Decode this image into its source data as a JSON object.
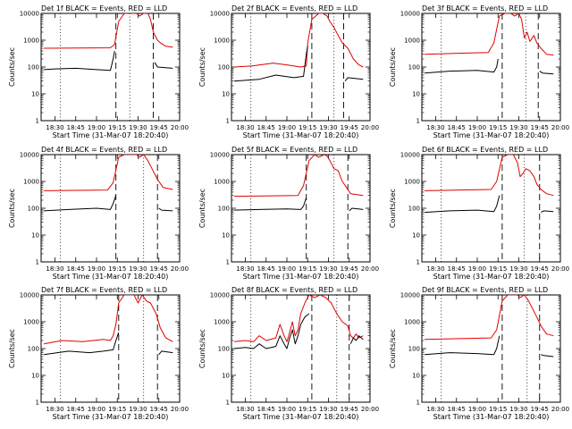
{
  "colors": {
    "events": "#000000",
    "lld": "#e00000",
    "axis": "#000000",
    "background": "#ffffff"
  },
  "chart_data": [
    {
      "type": "line",
      "title": "Det 1f BLACK = Events, RED = LLD",
      "xlabel": "Start Time (31-Mar-07 18:20:40)",
      "ylabel": "Counts/sec",
      "yscale": "log",
      "ylim": [
        1,
        10000
      ],
      "xlim": [
        "18:20",
        "20:00"
      ],
      "yticks": [
        "1",
        "10",
        "100",
        "1000",
        "10000"
      ],
      "xticks": [
        "18:30",
        "18:45",
        "19:00",
        "19:15",
        "19:30",
        "19:45",
        "20:00"
      ],
      "dotted_lines": [
        "18:34",
        "19:24"
      ],
      "dashed_lines": [
        "19:14",
        "19:41"
      ],
      "series": [
        {
          "color": "#e00000",
          "x": [
            "18:22",
            "19:10",
            "19:13",
            "19:16",
            "19:20",
            "19:29",
            "19:31",
            "19:34",
            "19:37",
            "19:39",
            "19:41",
            "19:44",
            "19:46",
            "19:50",
            "19:55"
          ],
          "y": [
            500,
            520,
            700,
            5000,
            10000,
            10000,
            8000,
            10000,
            10000,
            6000,
            2000,
            1000,
            800,
            600,
            550
          ]
        },
        {
          "color": "#000000",
          "x": [
            "18:22",
            "18:30",
            "18:45",
            "19:00",
            "19:10",
            "19:12",
            "19:13",
            "19:41",
            "19:42",
            "19:44",
            "19:55"
          ],
          "y": [
            80,
            85,
            90,
            80,
            75,
            200,
            400,
            null,
            150,
            100,
            90
          ]
        }
      ]
    },
    {
      "type": "line",
      "title": "Det 2f BLACK = Events, RED = LLD",
      "xlabel": "Start Time (31-Mar-07 18:20:40)",
      "ylabel": "Counts/sec",
      "yscale": "log",
      "ylim": [
        1,
        10000
      ],
      "xlim": [
        "18:20",
        "20:00"
      ],
      "yticks": [
        "1",
        "10",
        "100",
        "1000",
        "10000"
      ],
      "xticks": [
        "18:30",
        "18:45",
        "19:00",
        "19:15",
        "19:30",
        "19:45",
        "20:00"
      ],
      "dotted_lines": [
        "18:34",
        "19:34"
      ],
      "dashed_lines": [
        "19:18",
        "19:41"
      ],
      "series": [
        {
          "color": "#e00000",
          "x": [
            "18:22",
            "18:35",
            "18:50",
            "19:00",
            "19:10",
            "19:14",
            "19:15",
            "19:18",
            "19:23",
            "19:26",
            "19:29",
            "19:31",
            "19:34",
            "19:37",
            "19:40",
            "19:44",
            "19:48",
            "19:52",
            "19:55"
          ],
          "y": [
            100,
            110,
            140,
            120,
            100,
            110,
            800,
            6000,
            10000,
            10000,
            8000,
            5000,
            3000,
            1500,
            800,
            500,
            200,
            120,
            100
          ]
        },
        {
          "color": "#000000",
          "x": [
            "18:22",
            "18:40",
            "18:52",
            "19:05",
            "19:12",
            "19:14",
            "19:15",
            "19:41",
            "19:42",
            "19:44",
            "19:55"
          ],
          "y": [
            30,
            35,
            50,
            40,
            45,
            300,
            600,
            null,
            30,
            40,
            35
          ]
        }
      ]
    },
    {
      "type": "line",
      "title": "Det 3f BLACK = Events, RED = LLD",
      "xlabel": "Start Time (31-Mar-07 18:20:40)",
      "ylabel": "Counts/sec",
      "yscale": "log",
      "ylim": [
        1,
        10000
      ],
      "xlim": [
        "18:20",
        "20:00"
      ],
      "yticks": [
        "1",
        "10",
        "100",
        "1000",
        "10000"
      ],
      "xticks": [
        "18:30",
        "18:45",
        "19:00",
        "19:15",
        "19:30",
        "19:45",
        "20:00"
      ],
      "dotted_lines": [
        "18:34",
        "19:35"
      ],
      "dashed_lines": [
        "19:18",
        "19:44"
      ],
      "series": [
        {
          "color": "#e00000",
          "x": [
            "18:22",
            "19:08",
            "19:12",
            "19:16",
            "19:20",
            "19:24",
            "19:27",
            "19:30",
            "19:32",
            "19:34",
            "19:36",
            "19:38",
            "19:41",
            "19:43",
            "19:46",
            "19:50",
            "19:55"
          ],
          "y": [
            300,
            350,
            800,
            8000,
            10000,
            10000,
            8000,
            10000,
            6000,
            1200,
            2000,
            900,
            1500,
            800,
            500,
            300,
            280
          ]
        },
        {
          "color": "#000000",
          "x": [
            "18:22",
            "18:40",
            "19:00",
            "19:12",
            "19:14",
            "19:15",
            "19:44",
            "19:45",
            "19:47",
            "19:55"
          ],
          "y": [
            60,
            70,
            75,
            65,
            100,
            200,
            null,
            70,
            60,
            55
          ]
        }
      ]
    },
    {
      "type": "line",
      "title": "Det 4f BLACK = Events, RED = LLD",
      "xlabel": "Start Time (31-Mar-07 18:20:40)",
      "ylabel": "Counts/sec",
      "yscale": "log",
      "ylim": [
        1,
        10000
      ],
      "xlim": [
        "18:20",
        "20:00"
      ],
      "yticks": [
        "1",
        "10",
        "100",
        "1000",
        "10000"
      ],
      "xticks": [
        "18:30",
        "18:45",
        "19:00",
        "19:15",
        "19:30",
        "19:45",
        "20:00"
      ],
      "dotted_lines": [
        "18:34",
        "19:34"
      ],
      "dashed_lines": [
        "19:14",
        "19:44"
      ],
      "series": [
        {
          "color": "#e00000",
          "x": [
            "18:22",
            "19:08",
            "19:12",
            "19:16",
            "19:20",
            "19:29",
            "19:31",
            "19:34",
            "19:37",
            "19:40",
            "19:44",
            "19:48",
            "19:55"
          ],
          "y": [
            450,
            480,
            900,
            8000,
            10000,
            10000,
            8000,
            10000,
            6000,
            3000,
            1200,
            600,
            500
          ]
        },
        {
          "color": "#000000",
          "x": [
            "18:22",
            "18:40",
            "19:00",
            "19:10",
            "19:12",
            "19:14",
            "19:44",
            "19:45",
            "19:47",
            "19:55"
          ],
          "y": [
            80,
            90,
            100,
            90,
            150,
            300,
            null,
            100,
            85,
            80
          ]
        }
      ]
    },
    {
      "type": "line",
      "title": "Det 5f BLACK = Events, RED = LLD",
      "xlabel": "Start Time (31-Mar-07 18:20:40)",
      "ylabel": "Counts/sec",
      "yscale": "log",
      "ylim": [
        1,
        10000
      ],
      "xlim": [
        "18:20",
        "20:00"
      ],
      "yticks": [
        "1",
        "10",
        "100",
        "1000",
        "10000"
      ],
      "xticks": [
        "18:30",
        "18:45",
        "19:00",
        "19:15",
        "19:30",
        "19:45",
        "20:00"
      ],
      "dotted_lines": [
        "18:34",
        "19:34"
      ],
      "dashed_lines": [
        "19:14",
        "19:44"
      ],
      "series": [
        {
          "color": "#e00000",
          "x": [
            "18:22",
            "19:08",
            "19:12",
            "19:16",
            "19:20",
            "19:23",
            "19:27",
            "19:29",
            "19:31",
            "19:34",
            "19:37",
            "19:40",
            "19:43",
            "19:46",
            "19:55"
          ],
          "y": [
            280,
            300,
            700,
            6000,
            10000,
            8000,
            10000,
            9000,
            6000,
            3000,
            2500,
            1000,
            600,
            350,
            300
          ]
        },
        {
          "color": "#000000",
          "x": [
            "18:22",
            "18:40",
            "19:00",
            "19:10",
            "19:12",
            "19:14",
            "19:44",
            "19:45",
            "19:47",
            "19:55"
          ],
          "y": [
            85,
            90,
            95,
            90,
            120,
            250,
            null,
            80,
            100,
            90
          ]
        }
      ]
    },
    {
      "type": "line",
      "title": "Det 6f BLACK = Events, RED = LLD",
      "xlabel": "Start Time (31-Mar-07 18:20:40)",
      "ylabel": "Counts/sec",
      "yscale": "log",
      "ylim": [
        1,
        10000
      ],
      "xlim": [
        "18:20",
        "20:00"
      ],
      "yticks": [
        "1",
        "10",
        "100",
        "1000",
        "10000"
      ],
      "xticks": [
        "18:30",
        "18:45",
        "19:00",
        "19:15",
        "19:30",
        "19:45",
        "20:00"
      ],
      "dotted_lines": [
        "18:34",
        "19:34"
      ],
      "dashed_lines": [
        "19:18",
        "19:45"
      ],
      "series": [
        {
          "color": "#e00000",
          "x": [
            "18:22",
            "19:10",
            "19:14",
            "19:18",
            "19:22",
            "19:26",
            "19:29",
            "19:31",
            "19:33",
            "19:35",
            "19:38",
            "19:41",
            "19:43",
            "19:46",
            "19:50",
            "19:55"
          ],
          "y": [
            450,
            500,
            1000,
            8000,
            10000,
            10000,
            5000,
            1500,
            2000,
            3000,
            2500,
            1500,
            800,
            500,
            350,
            300
          ]
        },
        {
          "color": "#000000",
          "x": [
            "18:22",
            "18:40",
            "19:00",
            "19:12",
            "19:14",
            "19:16",
            "19:45",
            "19:46",
            "19:48",
            "19:55"
          ],
          "y": [
            70,
            80,
            85,
            75,
            120,
            300,
            null,
            70,
            80,
            75
          ]
        }
      ]
    },
    {
      "type": "line",
      "title": "Det 7f BLACK = Events, RED = LLD",
      "xlabel": "Start Time (31-Mar-07 18:20:40)",
      "ylabel": "Counts/sec",
      "yscale": "log",
      "ylim": [
        1,
        10000
      ],
      "xlim": [
        "18:20",
        "20:00"
      ],
      "yticks": [
        "1",
        "10",
        "100",
        "1000",
        "10000"
      ],
      "xticks": [
        "18:30",
        "18:45",
        "19:00",
        "19:15",
        "19:30",
        "19:45",
        "20:00"
      ],
      "dotted_lines": [
        "18:34",
        "19:34"
      ],
      "dashed_lines": [
        "19:16",
        "19:44"
      ],
      "series": [
        {
          "color": "#e00000",
          "x": [
            "18:22",
            "18:35",
            "18:50",
            "19:05",
            "19:10",
            "19:12",
            "19:14",
            "19:16",
            "19:20",
            "19:27",
            "19:30",
            "19:33",
            "19:36",
            "19:39",
            "19:43",
            "19:46",
            "19:50",
            "19:55"
          ],
          "y": [
            150,
            200,
            180,
            220,
            200,
            300,
            800,
            5000,
            10000,
            10000,
            5000,
            10000,
            6000,
            5000,
            2000,
            600,
            250,
            180
          ]
        },
        {
          "color": "#000000",
          "x": [
            "18:22",
            "18:40",
            "18:55",
            "19:05",
            "19:12",
            "19:14",
            "19:16",
            "19:44",
            "19:45",
            "19:47",
            "19:55"
          ],
          "y": [
            60,
            80,
            70,
            80,
            90,
            200,
            400,
            null,
            60,
            80,
            70
          ]
        }
      ]
    },
    {
      "type": "line",
      "title": "Det 8f BLACK = Events, RED = LLD",
      "xlabel": "Start Time (31-Mar-07 18:20:40)",
      "ylabel": "Counts/sec",
      "yscale": "log",
      "ylim": [
        1,
        10000
      ],
      "xlim": [
        "18:20",
        "20:00"
      ],
      "yticks": [
        "1",
        "10",
        "100",
        "1000",
        "10000"
      ],
      "xticks": [
        "18:30",
        "18:45",
        "19:00",
        "19:15",
        "19:30",
        "19:45",
        "20:00"
      ],
      "dotted_lines": [
        "18:34",
        "19:36"
      ],
      "dashed_lines": [
        "19:18",
        "19:45"
      ],
      "series": [
        {
          "color": "#e00000",
          "x": [
            "18:22",
            "18:30",
            "18:36",
            "18:40",
            "18:45",
            "18:52",
            "18:55",
            "18:58",
            "19:00",
            "19:02",
            "19:04",
            "19:06",
            "19:08",
            "19:10",
            "19:13",
            "19:16",
            "19:20",
            "19:24",
            "19:28",
            "19:32",
            "19:36",
            "19:40",
            "19:44",
            "19:46",
            "19:48",
            "19:50",
            "19:52",
            "19:55"
          ],
          "y": [
            180,
            200,
            180,
            300,
            200,
            250,
            800,
            300,
            180,
            400,
            1000,
            300,
            500,
            2000,
            5000,
            10000,
            8000,
            10000,
            8000,
            5000,
            2000,
            1000,
            700,
            300,
            250,
            350,
            250,
            300
          ]
        },
        {
          "color": "#000000",
          "x": [
            "18:22",
            "18:30",
            "18:36",
            "18:40",
            "18:45",
            "18:52",
            "18:55",
            "18:58",
            "19:00",
            "19:02",
            "19:04",
            "19:06",
            "19:08",
            "19:10",
            "19:13",
            "19:16",
            "19:45",
            "19:46",
            "19:48",
            "19:50",
            "19:52",
            "19:55"
          ],
          "y": [
            100,
            110,
            100,
            150,
            100,
            120,
            300,
            150,
            100,
            250,
            500,
            150,
            300,
            800,
            1500,
            2000,
            null,
            150,
            250,
            200,
            300,
            220
          ]
        }
      ]
    },
    {
      "type": "line",
      "title": "Det 9f BLACK = Events, RED = LLD",
      "xlabel": "Start Time (31-Mar-07 18:20:40)",
      "ylabel": "Counts/sec",
      "yscale": "log",
      "ylim": [
        1,
        10000
      ],
      "xlim": [
        "18:20",
        "20:00"
      ],
      "yticks": [
        "1",
        "10",
        "100",
        "1000",
        "10000"
      ],
      "xticks": [
        "18:30",
        "18:45",
        "19:00",
        "19:15",
        "19:30",
        "19:45",
        "20:00"
      ],
      "dotted_lines": [
        "18:34",
        "19:36"
      ],
      "dashed_lines": [
        "19:18",
        "19:45"
      ],
      "series": [
        {
          "color": "#e00000",
          "x": [
            "18:22",
            "19:10",
            "19:14",
            "19:18",
            "19:22",
            "19:29",
            "19:31",
            "19:34",
            "19:37",
            "19:40",
            "19:43",
            "19:46",
            "19:50",
            "19:55"
          ],
          "y": [
            220,
            250,
            500,
            6000,
            10000,
            10000,
            8000,
            10000,
            6000,
            3000,
            1500,
            700,
            350,
            300
          ]
        },
        {
          "color": "#000000",
          "x": [
            "18:22",
            "18:40",
            "19:00",
            "19:12",
            "19:14",
            "19:16",
            "19:45",
            "19:46",
            "19:48",
            "19:55"
          ],
          "y": [
            60,
            70,
            65,
            60,
            100,
            300,
            null,
            60,
            55,
            50
          ]
        }
      ]
    }
  ]
}
